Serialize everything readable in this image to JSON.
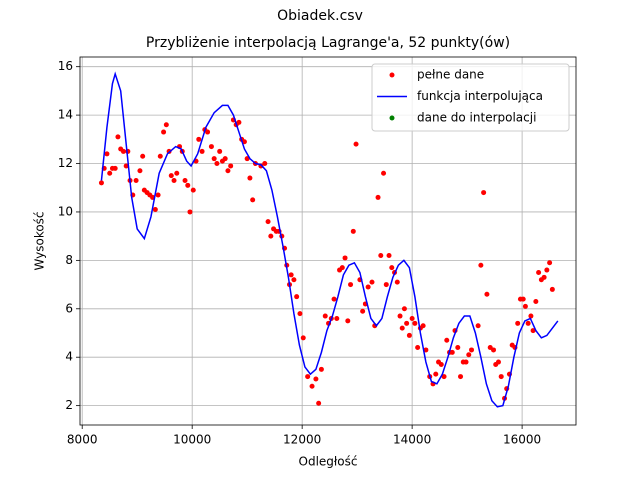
{
  "chart_data": {
    "type": "line",
    "suptitle": "Obiadek.csv",
    "title": "Przybliżenie interpolacją Lagrange'a, 52 punkty(ów)",
    "x_label": "Odległość",
    "y_label": "Wysokość",
    "grid": true,
    "legend_position": "upper right",
    "xlim": [
      7960,
      16980
    ],
    "ylim": [
      1.2,
      16.4
    ],
    "xticks": [
      8000,
      10000,
      12000,
      14000,
      16000
    ],
    "yticks": [
      2,
      4,
      6,
      8,
      10,
      12,
      14,
      16
    ],
    "series": [
      {
        "name": "pełne dane",
        "color": "#ff0000",
        "style": "markers",
        "x": [
          8350,
          8400,
          8450,
          8500,
          8550,
          8600,
          8650,
          8700,
          8750,
          8800,
          8830,
          8870,
          8920,
          8980,
          9050,
          9100,
          9130,
          9180,
          9230,
          9280,
          9330,
          9380,
          9420,
          9480,
          9530,
          9580,
          9620,
          9670,
          9720,
          9770,
          9820,
          9870,
          9920,
          9960,
          10020,
          10070,
          10120,
          10180,
          10230,
          10280,
          10350,
          10400,
          10450,
          10500,
          10550,
          10600,
          10650,
          10700,
          10750,
          10800,
          10850,
          10900,
          10950,
          11000,
          11050,
          11100,
          11150,
          11250,
          11320,
          11380,
          11430,
          11480,
          11530,
          11580,
          11630,
          11680,
          11720,
          11770,
          11800,
          11850,
          11900,
          11960,
          12020,
          12100,
          12180,
          12250,
          12300,
          12350,
          12420,
          12480,
          12530,
          12580,
          12630,
          12680,
          12730,
          12780,
          12830,
          12880,
          12930,
          12980,
          13050,
          13100,
          13150,
          13200,
          13270,
          13320,
          13380,
          13430,
          13480,
          13530,
          13580,
          13630,
          13680,
          13730,
          13780,
          13820,
          13860,
          13900,
          13950,
          14000,
          14050,
          14100,
          14150,
          14200,
          14250,
          14320,
          14380,
          14430,
          14480,
          14530,
          14580,
          14630,
          14680,
          14730,
          14780,
          14830,
          14880,
          14930,
          14980,
          15030,
          15080,
          15200,
          15250,
          15300,
          15360,
          15420,
          15480,
          15520,
          15570,
          15620,
          15680,
          15720,
          15770,
          15820,
          15870,
          15920,
          15970,
          16020,
          16060,
          16110,
          16160,
          16200,
          16250,
          16300,
          16350,
          16400,
          16450,
          16500,
          16550
        ],
        "values": [
          11.2,
          11.8,
          12.4,
          11.6,
          11.8,
          11.8,
          13.1,
          12.6,
          12.5,
          11.9,
          12.5,
          11.3,
          10.7,
          11.3,
          11.7,
          12.3,
          10.9,
          10.8,
          10.7,
          10.6,
          10.1,
          10.7,
          12.3,
          13.3,
          13.6,
          12.5,
          11.5,
          11.3,
          11.6,
          12.7,
          12.5,
          11.3,
          11.1,
          10.0,
          10.9,
          12.1,
          13.0,
          12.5,
          13.4,
          13.3,
          12.7,
          12.2,
          12.0,
          12.5,
          12.1,
          12.2,
          11.7,
          11.9,
          13.8,
          13.6,
          13.7,
          13.0,
          12.9,
          12.2,
          11.4,
          10.5,
          12.0,
          11.9,
          12.0,
          9.6,
          9.0,
          9.3,
          9.2,
          9.2,
          9.0,
          8.5,
          7.8,
          7.0,
          7.4,
          7.2,
          6.5,
          5.8,
          4.8,
          3.2,
          2.8,
          3.1,
          2.1,
          3.5,
          5.7,
          5.4,
          5.6,
          6.4,
          5.6,
          7.6,
          7.7,
          8.1,
          5.5,
          7.0,
          9.2,
          12.8,
          7.2,
          5.9,
          6.2,
          6.9,
          7.1,
          5.3,
          10.6,
          8.2,
          11.6,
          7.0,
          8.2,
          7.7,
          7.5,
          7.1,
          5.7,
          5.2,
          6.0,
          5.4,
          4.9,
          5.6,
          5.4,
          4.4,
          5.2,
          5.3,
          4.3,
          3.2,
          2.9,
          3.3,
          3.8,
          3.7,
          3.2,
          4.7,
          4.2,
          4.2,
          5.1,
          4.4,
          3.2,
          3.8,
          3.8,
          4.1,
          4.3,
          5.3,
          7.8,
          10.8,
          6.6,
          4.4,
          4.3,
          3.7,
          3.8,
          3.2,
          2.3,
          2.7,
          3.3,
          4.5,
          4.4,
          5.4,
          6.4,
          6.4,
          6.1,
          5.4,
          5.7,
          5.1,
          6.3,
          7.5,
          7.2,
          7.3,
          7.6,
          7.9,
          6.8
        ]
      },
      {
        "name": "funkcja interpolująca",
        "color": "#0000ff",
        "style": "line",
        "x": [
          8350,
          8450,
          8550,
          8600,
          8700,
          8800,
          8900,
          9000,
          9130,
          9250,
          9400,
          9550,
          9700,
          9800,
          9900,
          9980,
          10100,
          10250,
          10400,
          10550,
          10650,
          10750,
          10850,
          10950,
          11050,
          11150,
          11250,
          11350,
          11450,
          11550,
          11650,
          11750,
          11850,
          11950,
          12050,
          12150,
          12250,
          12350,
          12450,
          12550,
          12650,
          12750,
          12850,
          12950,
          13050,
          13150,
          13250,
          13350,
          13450,
          13550,
          13650,
          13750,
          13850,
          13950,
          14050,
          14150,
          14250,
          14350,
          14450,
          14550,
          14650,
          14750,
          14850,
          14950,
          15050,
          15150,
          15250,
          15350,
          15450,
          15550,
          15650,
          15750,
          15850,
          15950,
          16050,
          16150,
          16250,
          16350,
          16450,
          16550,
          16650
        ],
        "values": [
          11.3,
          13.5,
          15.3,
          15.7,
          15.0,
          12.8,
          10.6,
          9.3,
          8.9,
          9.8,
          11.6,
          12.4,
          12.7,
          12.6,
          12.1,
          11.9,
          12.4,
          13.5,
          14.1,
          14.4,
          14.4,
          14.0,
          13.3,
          12.6,
          12.2,
          12.0,
          11.95,
          11.7,
          10.9,
          9.8,
          8.6,
          7.3,
          5.8,
          4.5,
          3.6,
          3.3,
          3.5,
          4.2,
          5.1,
          5.7,
          6.5,
          7.4,
          7.8,
          7.9,
          7.5,
          6.5,
          5.6,
          5.3,
          5.6,
          6.5,
          7.3,
          7.8,
          8.0,
          7.7,
          6.5,
          5.0,
          3.8,
          3.0,
          2.9,
          3.3,
          4.0,
          4.8,
          5.4,
          5.7,
          5.7,
          5.0,
          4.0,
          2.9,
          2.2,
          1.95,
          2.0,
          2.8,
          4.0,
          5.0,
          5.5,
          5.6,
          5.1,
          4.8,
          4.9,
          5.2,
          5.5
        ]
      },
      {
        "name": "dane do interpolacji",
        "color": "#008000",
        "style": "markers",
        "x": [],
        "values": []
      }
    ]
  }
}
